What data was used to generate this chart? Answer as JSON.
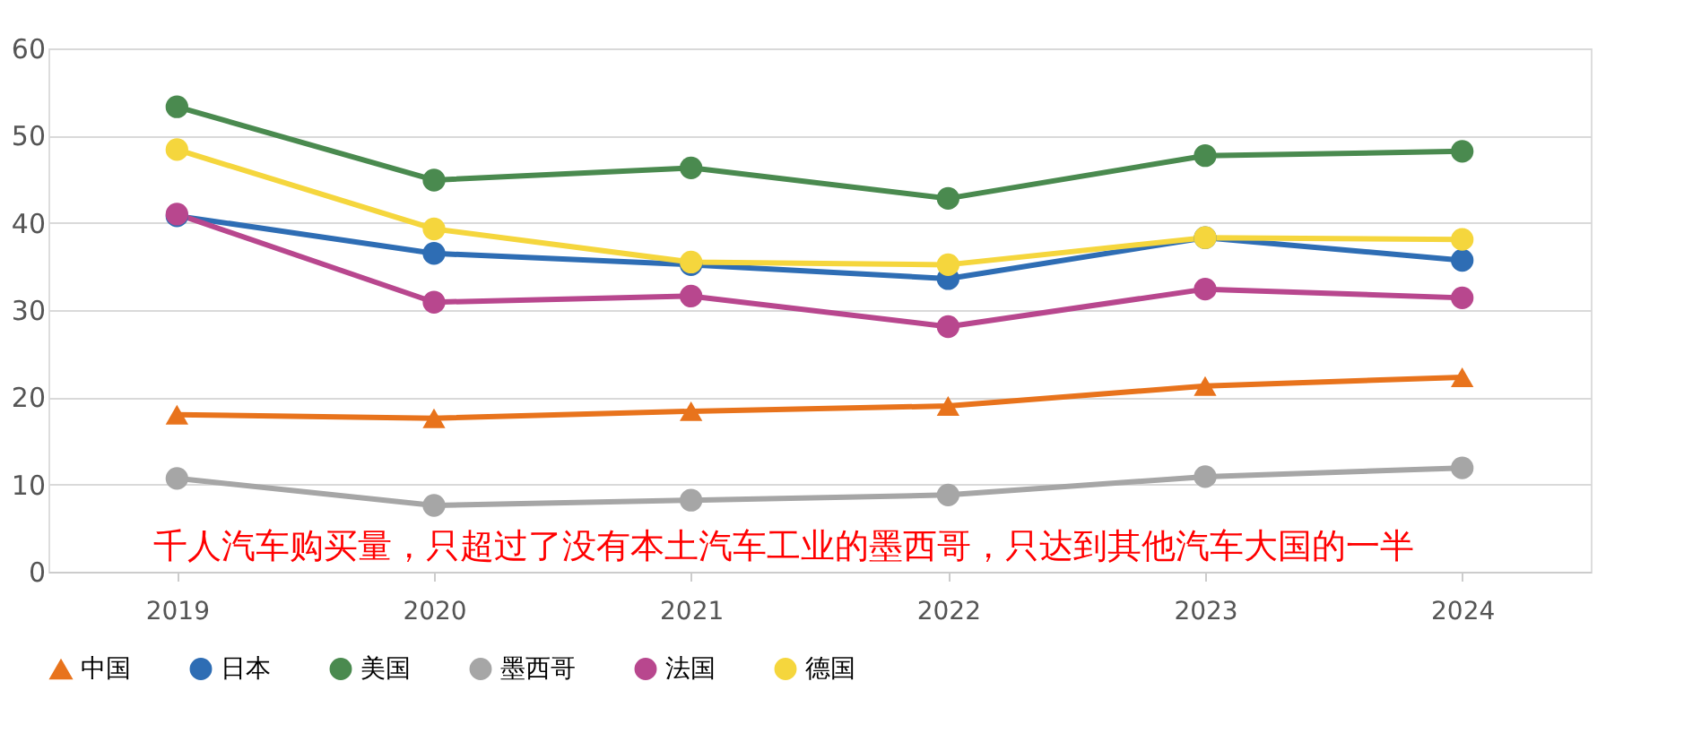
{
  "chart_data": {
    "type": "line",
    "categories": [
      "2019",
      "2020",
      "2021",
      "2022",
      "2023",
      "2024"
    ],
    "series": [
      {
        "name": "中国",
        "color": "#e8731c",
        "marker": "triangle",
        "values": [
          18.0,
          17.6,
          18.4,
          19.0,
          21.3,
          22.3
        ]
      },
      {
        "name": "日本",
        "color": "#2e6db4",
        "marker": "circle",
        "values": [
          40.8,
          36.5,
          35.2,
          33.6,
          38.3,
          35.7
        ]
      },
      {
        "name": "美国",
        "color": "#4a8a4f",
        "marker": "circle",
        "values": [
          53.3,
          44.9,
          46.3,
          42.8,
          47.7,
          48.2
        ]
      },
      {
        "name": "墨西哥",
        "color": "#a6a6a6",
        "marker": "circle",
        "values": [
          10.7,
          7.6,
          8.2,
          8.8,
          10.9,
          11.9
        ]
      },
      {
        "name": "法国",
        "color": "#b8478e",
        "marker": "circle",
        "values": [
          41.0,
          30.9,
          31.6,
          28.1,
          32.4,
          31.4
        ]
      },
      {
        "name": "德国",
        "color": "#f5d63d",
        "marker": "circle",
        "values": [
          48.4,
          39.3,
          35.5,
          35.2,
          38.3,
          38.1
        ]
      }
    ],
    "ylim": [
      0,
      60
    ],
    "yticks": [
      0,
      10,
      20,
      30,
      40,
      50,
      60
    ],
    "grid": "y",
    "legend": "bottom",
    "annotations": [
      "千人汽车购买量，只超过了没有本土汽车工业的墨西哥，只达到其他汽车大国的一半"
    ]
  }
}
